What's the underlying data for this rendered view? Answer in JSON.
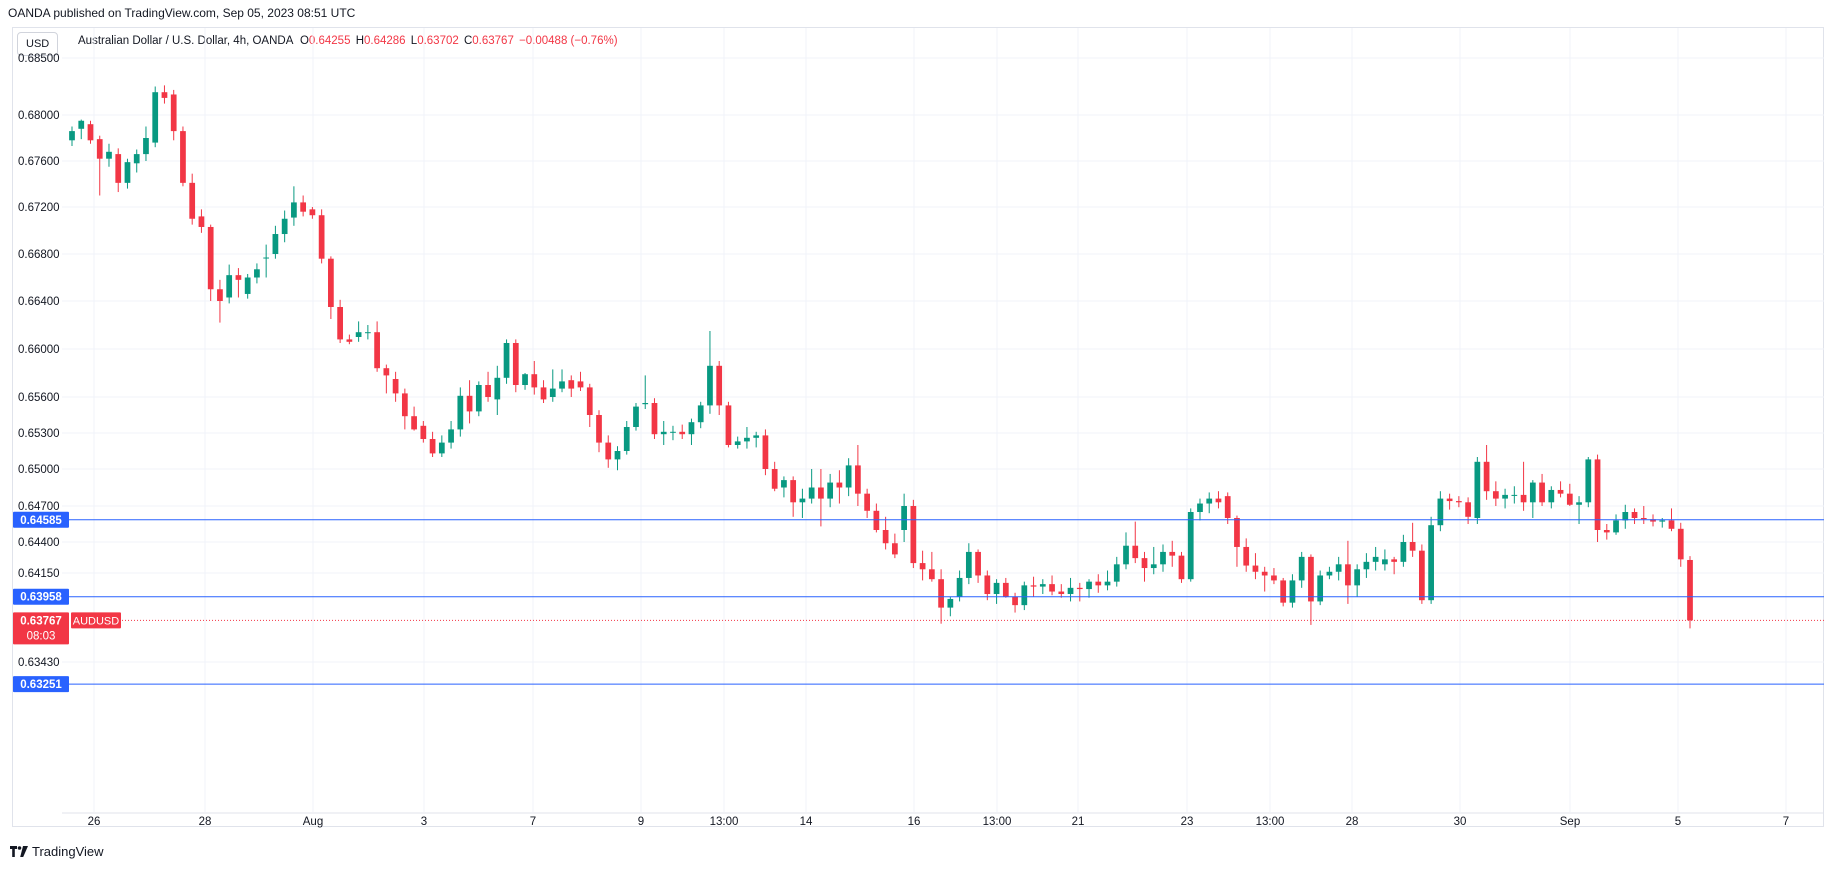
{
  "header": {
    "published": "OANDA published on TradingView.com, Sep 05, 2023 08:51 UTC"
  },
  "currency_button": "USD",
  "legend": {
    "symbol": "Australian Dollar / U.S. Dollar, 4h, OANDA",
    "o_label": "O",
    "o_value": "0.64255",
    "h_label": "H",
    "h_value": "0.64286",
    "l_label": "L",
    "l_value": "0.63702",
    "c_label": "C",
    "c_value": "0.63767",
    "change": "−0.00488 (−0.76%)"
  },
  "footer": {
    "logo_text": "TradingView"
  },
  "colors": {
    "up": "#089981",
    "down": "#f23645",
    "line": "#2962ff",
    "grid": "#f0f3fa",
    "text": "#131722"
  },
  "chart_data": {
    "type": "candlestick",
    "title": "Australian Dollar / U.S. Dollar, 4h, OANDA",
    "y_ticks": [
      "0.68500",
      "0.68000",
      "0.67600",
      "0.67200",
      "0.66800",
      "0.66400",
      "0.66000",
      "0.65600",
      "0.65300",
      "0.65000",
      "0.64700",
      "0.64400",
      "0.64150",
      "0.63430"
    ],
    "x_ticks": [
      "26",
      "28",
      "Aug",
      "3",
      "7",
      "9",
      "13:00",
      "14",
      "16",
      "13:00",
      "21",
      "23",
      "13:00",
      "28",
      "30",
      "Sep",
      "5",
      "7"
    ],
    "horizontal_lines": [
      {
        "price": "0.64585"
      },
      {
        "price": "0.63958"
      },
      {
        "price": "0.63251"
      }
    ],
    "last_price": {
      "symbol": "AUDUSD",
      "price": "0.63767",
      "countdown": "08:03"
    },
    "candles": [
      [
        0.6778,
        0.679,
        0.6773,
        0.6786
      ],
      [
        0.6788,
        0.6796,
        0.6779,
        0.6795
      ],
      [
        0.6792,
        0.6795,
        0.6775,
        0.6778
      ],
      [
        0.6779,
        0.6782,
        0.673,
        0.6762
      ],
      [
        0.6762,
        0.6775,
        0.6755,
        0.6768
      ],
      [
        0.6766,
        0.6771,
        0.6733,
        0.6741
      ],
      [
        0.6741,
        0.6762,
        0.6736,
        0.6759
      ],
      [
        0.6758,
        0.677,
        0.675,
        0.6766
      ],
      [
        0.6766,
        0.679,
        0.676,
        0.678
      ],
      [
        0.6776,
        0.6825,
        0.6772,
        0.682
      ],
      [
        0.682,
        0.6826,
        0.681,
        0.6815
      ],
      [
        0.6818,
        0.6822,
        0.6778,
        0.6786
      ],
      [
        0.6786,
        0.679,
        0.6738,
        0.6741
      ],
      [
        0.6741,
        0.6749,
        0.6705,
        0.671
      ],
      [
        0.6712,
        0.6718,
        0.6698,
        0.6703
      ],
      [
        0.6703,
        0.6705,
        0.664,
        0.665
      ],
      [
        0.665,
        0.6658,
        0.6622,
        0.664
      ],
      [
        0.6643,
        0.6671,
        0.6638,
        0.6662
      ],
      [
        0.6662,
        0.6668,
        0.6643,
        0.6658
      ],
      [
        0.6646,
        0.6663,
        0.6642,
        0.666
      ],
      [
        0.666,
        0.6672,
        0.6655,
        0.6667
      ],
      [
        0.6677,
        0.6688,
        0.666,
        0.6677
      ],
      [
        0.668,
        0.6704,
        0.6676,
        0.6697
      ],
      [
        0.6697,
        0.6717,
        0.669,
        0.671
      ],
      [
        0.6711,
        0.6738,
        0.6704,
        0.6724
      ],
      [
        0.6724,
        0.673,
        0.6712,
        0.6716
      ],
      [
        0.6718,
        0.672,
        0.671,
        0.6713
      ],
      [
        0.6713,
        0.6718,
        0.6672,
        0.6676
      ],
      [
        0.6676,
        0.6678,
        0.6625,
        0.6635
      ],
      [
        0.6635,
        0.6641,
        0.6605,
        0.6608
      ],
      [
        0.6608,
        0.6612,
        0.6604,
        0.6606
      ],
      [
        0.661,
        0.6623,
        0.6606,
        0.6614
      ],
      [
        0.6614,
        0.662,
        0.6608,
        0.6614
      ],
      [
        0.6614,
        0.6623,
        0.6581,
        0.6584
      ],
      [
        0.6584,
        0.6587,
        0.6563,
        0.6578
      ],
      [
        0.6575,
        0.6581,
        0.6556,
        0.6563
      ],
      [
        0.6563,
        0.6567,
        0.6533,
        0.6544
      ],
      [
        0.6544,
        0.6552,
        0.6532,
        0.6533
      ],
      [
        0.6536,
        0.654,
        0.6522,
        0.6525
      ],
      [
        0.6525,
        0.6531,
        0.651,
        0.6513
      ],
      [
        0.6513,
        0.6528,
        0.651,
        0.6522
      ],
      [
        0.6522,
        0.654,
        0.6517,
        0.6533
      ],
      [
        0.6533,
        0.6568,
        0.6527,
        0.6561
      ],
      [
        0.6561,
        0.6574,
        0.6538,
        0.6548
      ],
      [
        0.6548,
        0.6573,
        0.6544,
        0.657
      ],
      [
        0.657,
        0.6581,
        0.6556,
        0.656
      ],
      [
        0.6558,
        0.6586,
        0.6545,
        0.6576
      ],
      [
        0.6576,
        0.6608,
        0.6571,
        0.6605
      ],
      [
        0.6605,
        0.6608,
        0.6564,
        0.657
      ],
      [
        0.657,
        0.658,
        0.6566,
        0.6579
      ],
      [
        0.6579,
        0.659,
        0.6562,
        0.6568
      ],
      [
        0.6568,
        0.6574,
        0.6555,
        0.6558
      ],
      [
        0.656,
        0.6583,
        0.6556,
        0.6567
      ],
      [
        0.6567,
        0.6583,
        0.6564,
        0.6573
      ],
      [
        0.6574,
        0.6578,
        0.656,
        0.6567
      ],
      [
        0.6573,
        0.6581,
        0.6565,
        0.6568
      ],
      [
        0.6568,
        0.6571,
        0.6535,
        0.6545
      ],
      [
        0.6545,
        0.6549,
        0.6514,
        0.6522
      ],
      [
        0.6522,
        0.6528,
        0.6501,
        0.6508
      ],
      [
        0.6508,
        0.6519,
        0.6499,
        0.6515
      ],
      [
        0.6515,
        0.654,
        0.6512,
        0.6535
      ],
      [
        0.6535,
        0.6555,
        0.6532,
        0.6552
      ],
      [
        0.6554,
        0.6578,
        0.655,
        0.6555
      ],
      [
        0.6555,
        0.6559,
        0.6525,
        0.6529
      ],
      [
        0.6529,
        0.654,
        0.652,
        0.6531
      ],
      [
        0.6531,
        0.6536,
        0.6524,
        0.6531
      ],
      [
        0.6531,
        0.6537,
        0.6525,
        0.6529
      ],
      [
        0.6529,
        0.6542,
        0.652,
        0.6539
      ],
      [
        0.6539,
        0.6556,
        0.6534,
        0.6553
      ],
      [
        0.6553,
        0.6615,
        0.6546,
        0.6586
      ],
      [
        0.6586,
        0.659,
        0.6545,
        0.6553
      ],
      [
        0.6553,
        0.6556,
        0.6518,
        0.652
      ],
      [
        0.652,
        0.6527,
        0.6517,
        0.6523
      ],
      [
        0.6523,
        0.6535,
        0.6517,
        0.6526
      ],
      [
        0.6526,
        0.6531,
        0.6518,
        0.6528
      ],
      [
        0.6528,
        0.6533,
        0.6495,
        0.65
      ],
      [
        0.65,
        0.6506,
        0.6482,
        0.6484
      ],
      [
        0.6485,
        0.6494,
        0.6477,
        0.6491
      ],
      [
        0.6491,
        0.6494,
        0.6461,
        0.6473
      ],
      [
        0.6473,
        0.6484,
        0.646,
        0.6476
      ],
      [
        0.6476,
        0.65,
        0.6472,
        0.6485
      ],
      [
        0.6485,
        0.65,
        0.6453,
        0.6476
      ],
      [
        0.6476,
        0.6496,
        0.6469,
        0.6489
      ],
      [
        0.6489,
        0.6499,
        0.6472,
        0.6485
      ],
      [
        0.6485,
        0.6509,
        0.6478,
        0.6503
      ],
      [
        0.6503,
        0.652,
        0.647,
        0.648
      ],
      [
        0.648,
        0.6484,
        0.646,
        0.6466
      ],
      [
        0.6466,
        0.6472,
        0.6448,
        0.645
      ],
      [
        0.645,
        0.6461,
        0.6434,
        0.6439
      ],
      [
        0.6439,
        0.6447,
        0.6427,
        0.643
      ],
      [
        0.645,
        0.648,
        0.644,
        0.647
      ],
      [
        0.647,
        0.6475,
        0.6419,
        0.6423
      ],
      [
        0.6423,
        0.6433,
        0.6409,
        0.6418
      ],
      [
        0.6418,
        0.6432,
        0.6408,
        0.641
      ],
      [
        0.641,
        0.6418,
        0.6374,
        0.6387
      ],
      [
        0.6387,
        0.6396,
        0.638,
        0.6394
      ],
      [
        0.6396,
        0.6417,
        0.6392,
        0.6411
      ],
      [
        0.6411,
        0.6439,
        0.6406,
        0.6432
      ],
      [
        0.6432,
        0.6434,
        0.6407,
        0.6413
      ],
      [
        0.6413,
        0.6417,
        0.6393,
        0.6398
      ],
      [
        0.6398,
        0.641,
        0.639,
        0.6407
      ],
      [
        0.6407,
        0.6411,
        0.6395,
        0.6396
      ],
      [
        0.6396,
        0.6399,
        0.6383,
        0.6389
      ],
      [
        0.6389,
        0.6408,
        0.6385,
        0.6405
      ],
      [
        0.6405,
        0.6412,
        0.6396,
        0.6404
      ],
      [
        0.6404,
        0.641,
        0.6398,
        0.6406
      ],
      [
        0.6406,
        0.6413,
        0.6397,
        0.64
      ],
      [
        0.64,
        0.6406,
        0.6395,
        0.6398
      ],
      [
        0.6398,
        0.6411,
        0.6392,
        0.6403
      ],
      [
        0.6403,
        0.6407,
        0.6392,
        0.6402
      ],
      [
        0.6402,
        0.641,
        0.6395,
        0.6408
      ],
      [
        0.6408,
        0.6414,
        0.6399,
        0.6405
      ],
      [
        0.6405,
        0.6417,
        0.6401,
        0.6408
      ],
      [
        0.6408,
        0.6428,
        0.6404,
        0.6422
      ],
      [
        0.6422,
        0.6448,
        0.6418,
        0.6437
      ],
      [
        0.6437,
        0.6457,
        0.6423,
        0.6427
      ],
      [
        0.6427,
        0.6432,
        0.6408,
        0.6419
      ],
      [
        0.6419,
        0.6436,
        0.6414,
        0.6422
      ],
      [
        0.6422,
        0.6438,
        0.6416,
        0.6432
      ],
      [
        0.6432,
        0.6441,
        0.642,
        0.6429
      ],
      [
        0.6429,
        0.6432,
        0.6407,
        0.641
      ],
      [
        0.641,
        0.6468,
        0.6408,
        0.6465
      ],
      [
        0.6465,
        0.6476,
        0.6458,
        0.6472
      ],
      [
        0.6472,
        0.6481,
        0.6464,
        0.6476
      ],
      [
        0.6476,
        0.6482,
        0.6468,
        0.6473
      ],
      [
        0.6478,
        0.6481,
        0.6455,
        0.646
      ],
      [
        0.646,
        0.6462,
        0.642,
        0.6436
      ],
      [
        0.6436,
        0.6443,
        0.6416,
        0.6421
      ],
      [
        0.6421,
        0.6431,
        0.641,
        0.6416
      ],
      [
        0.6416,
        0.642,
        0.64,
        0.6413
      ],
      [
        0.6413,
        0.6419,
        0.6406,
        0.6409
      ],
      [
        0.6409,
        0.6411,
        0.6388,
        0.6391
      ],
      [
        0.6391,
        0.6414,
        0.6387,
        0.6409
      ],
      [
        0.6409,
        0.6432,
        0.6403,
        0.6428
      ],
      [
        0.6428,
        0.643,
        0.6373,
        0.6392
      ],
      [
        0.6392,
        0.6417,
        0.6389,
        0.6413
      ],
      [
        0.6413,
        0.642,
        0.641,
        0.6416
      ],
      [
        0.6416,
        0.6428,
        0.6409,
        0.6422
      ],
      [
        0.6422,
        0.6441,
        0.639,
        0.6405
      ],
      [
        0.6405,
        0.6422,
        0.6396,
        0.6418
      ],
      [
        0.6418,
        0.6431,
        0.6411,
        0.6424
      ],
      [
        0.6424,
        0.6436,
        0.6417,
        0.6428
      ],
      [
        0.6422,
        0.6434,
        0.6417,
        0.6426
      ],
      [
        0.6426,
        0.6428,
        0.6414,
        0.6424
      ],
      [
        0.6424,
        0.6446,
        0.642,
        0.644
      ],
      [
        0.644,
        0.6456,
        0.6428,
        0.6433
      ],
      [
        0.6433,
        0.6438,
        0.639,
        0.6393
      ],
      [
        0.6393,
        0.6461,
        0.639,
        0.6454
      ],
      [
        0.6454,
        0.6482,
        0.6449,
        0.6476
      ],
      [
        0.6476,
        0.648,
        0.6467,
        0.6474
      ],
      [
        0.6474,
        0.6478,
        0.6469,
        0.6473
      ],
      [
        0.6473,
        0.6477,
        0.6455,
        0.6461
      ],
      [
        0.646,
        0.651,
        0.6455,
        0.6506
      ],
      [
        0.6506,
        0.652,
        0.6475,
        0.6482
      ],
      [
        0.6482,
        0.649,
        0.647,
        0.6476
      ],
      [
        0.6476,
        0.6484,
        0.6468,
        0.6479
      ],
      [
        0.6479,
        0.6486,
        0.6472,
        0.6479
      ],
      [
        0.6479,
        0.6506,
        0.6466,
        0.6473
      ],
      [
        0.6473,
        0.6491,
        0.646,
        0.6489
      ],
      [
        0.6489,
        0.6496,
        0.647,
        0.6473
      ],
      [
        0.6473,
        0.6486,
        0.6468,
        0.6483
      ],
      [
        0.6483,
        0.649,
        0.6477,
        0.648
      ],
      [
        0.648,
        0.6488,
        0.647,
        0.6471
      ],
      [
        0.6471,
        0.6478,
        0.6455,
        0.6473
      ],
      [
        0.6473,
        0.651,
        0.6469,
        0.6508
      ],
      [
        0.6508,
        0.6512,
        0.644,
        0.645
      ],
      [
        0.645,
        0.6455,
        0.6442,
        0.6448
      ],
      [
        0.6448,
        0.6463,
        0.6446,
        0.6458
      ],
      [
        0.6458,
        0.6471,
        0.6451,
        0.6465
      ],
      [
        0.6465,
        0.6468,
        0.6455,
        0.646
      ],
      [
        0.646,
        0.647,
        0.6455,
        0.6459
      ],
      [
        0.6459,
        0.6463,
        0.6453,
        0.6457
      ],
      [
        0.6457,
        0.646,
        0.6452,
        0.6458
      ],
      [
        0.6458,
        0.6468,
        0.6449,
        0.6451
      ],
      [
        0.6451,
        0.6456,
        0.642,
        0.6426
      ],
      [
        0.64255,
        0.64286,
        0.63702,
        0.63767
      ]
    ]
  }
}
